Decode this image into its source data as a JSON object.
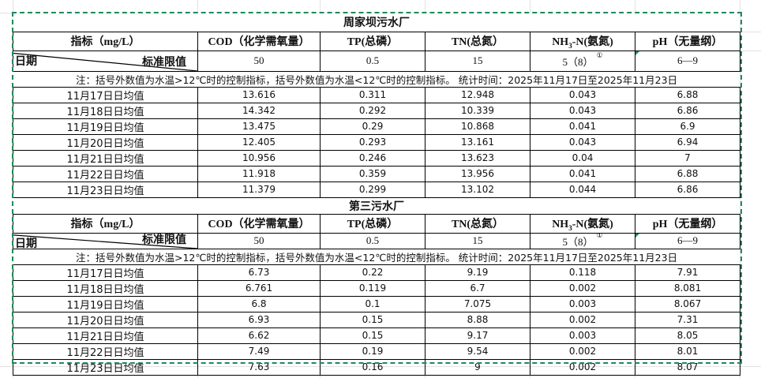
{
  "colors": {
    "selection_border": "#1e8a5c",
    "grid": "#e2e2e2"
  },
  "tables": [
    {
      "title": "周家坝污水厂",
      "headers": {
        "indicator": "指标（mg/L）",
        "cod": "COD（化学需氧量）",
        "tp": "TP(总磷）",
        "tn": "TN(总氮）",
        "nh3_pre": "NH",
        "nh3_sub": "3",
        "nh3_post": "-N(氨氮)",
        "ph": "pH（无量纲）"
      },
      "limit_row": {
        "date_label": "日期",
        "limit_label": "标准限值",
        "cod": "50",
        "tp": "0.5",
        "tn": "15",
        "nh3": "5（8）",
        "nh3_note": "①",
        "ph": "6—9"
      },
      "rows": [
        {
          "date": "11月17日日均值",
          "cod": "13.616",
          "tp": "0.311",
          "tn": "12.948",
          "nh3": "0.043",
          "ph": "6.88"
        },
        {
          "date": "11月18日日均值",
          "cod": "14.342",
          "tp": "0.292",
          "tn": "10.339",
          "nh3": "0.043",
          "ph": "6.86"
        },
        {
          "date": "11月19日日均值",
          "cod": "13.475",
          "tp": "0.29",
          "tn": "10.868",
          "nh3": "0.041",
          "ph": "6.9"
        },
        {
          "date": "11月20日日均值",
          "cod": "12.405",
          "tp": "0.293",
          "tn": "13.161",
          "nh3": "0.043",
          "ph": "6.94"
        },
        {
          "date": "11月21日日均值",
          "cod": "10.956",
          "tp": "0.246",
          "tn": "13.623",
          "nh3": "0.04",
          "ph": "7"
        },
        {
          "date": "11月22日日均值",
          "cod": "11.918",
          "tp": "0.359",
          "tn": "13.956",
          "nh3": "0.041",
          "ph": "6.88"
        },
        {
          "date": "11月23日日均值",
          "cod": "11.379",
          "tp": "0.299",
          "tn": "13.102",
          "nh3": "0.044",
          "ph": "6.86"
        }
      ],
      "note": "注：括号外数值为水温>12℃时的控制指标，括号外数值为水温<12℃时的控制指标。   统计时间：2025年11月17日至2025年11月23日"
    },
    {
      "title": "第三污水厂",
      "headers": {
        "indicator": "指标（mg/L）",
        "cod": "COD（化学需氧量）",
        "tp": "TP(总磷）",
        "tn": "TN(总氮）",
        "nh3_pre": "NH",
        "nh3_sub": "3",
        "nh3_post": "-N(氨氮)",
        "ph": "pH（无量纲）"
      },
      "limit_row": {
        "date_label": "日期",
        "limit_label": "标准限值",
        "cod": "50",
        "tp": "0.5",
        "tn": "15",
        "nh3": "5（8）",
        "nh3_note": "①",
        "ph": "6—9"
      },
      "rows": [
        {
          "date": "11月17日日均值",
          "cod": "6.73",
          "tp": "0.22",
          "tn": "9.19",
          "nh3": "0.118",
          "ph": "7.91"
        },
        {
          "date": "11月18日日均值",
          "cod": "6.761",
          "tp": "0.119",
          "tn": "6.7",
          "nh3": "0.002",
          "ph": "8.081"
        },
        {
          "date": "11月19日日均值",
          "cod": "6.8",
          "tp": "0.1",
          "tn": "7.075",
          "nh3": "0.003",
          "ph": "8.067"
        },
        {
          "date": "11月20日日均值",
          "cod": "6.93",
          "tp": "0.15",
          "tn": "8.88",
          "nh3": "0.002",
          "ph": "7.31"
        },
        {
          "date": "11月21日日均值",
          "cod": "6.62",
          "tp": "0.15",
          "tn": "9.17",
          "nh3": "0.003",
          "ph": "8.05"
        },
        {
          "date": "11月22日日均值",
          "cod": "7.49",
          "tp": "0.19",
          "tn": "9.54",
          "nh3": "0.002",
          "ph": "8.01"
        },
        {
          "date": "11月23日日均值",
          "cod": "7.63",
          "tp": "0.16",
          "tn": "9",
          "nh3": "0.002",
          "ph": "8.07"
        }
      ],
      "note": "注：括号外数值为水温>12℃时的控制指标，括号外数值为水温<12℃时的控制指标。   统计时间：2025年11月17日至2025年11月23日"
    }
  ]
}
